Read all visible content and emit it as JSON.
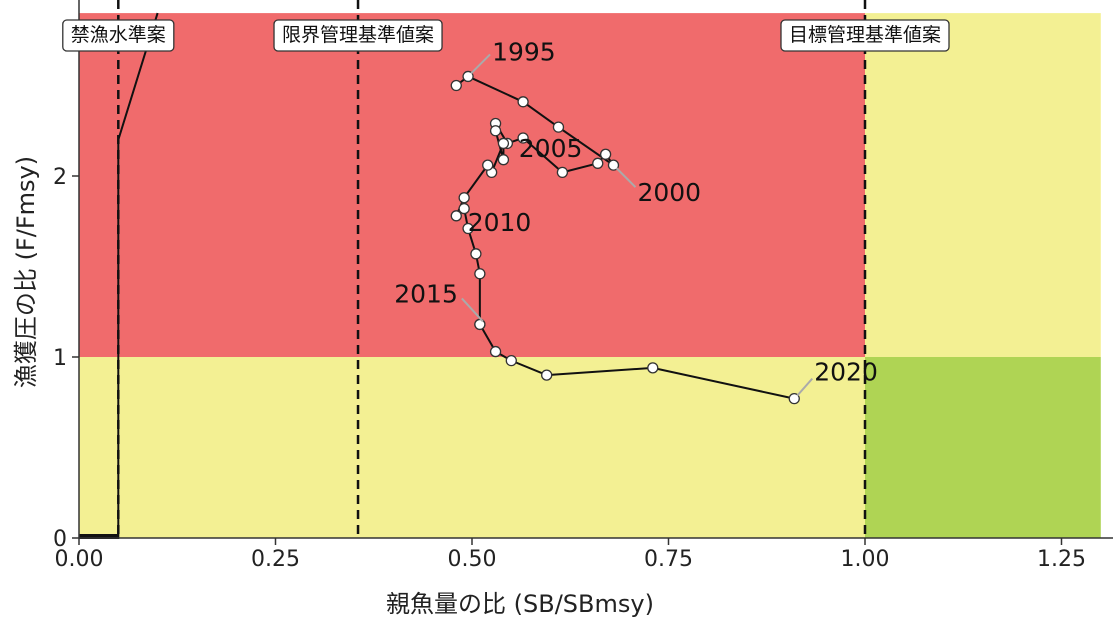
{
  "chart_data": {
    "type": "scatter",
    "title": "",
    "xlabel": "親魚量の比 (SB/SBmsy)",
    "ylabel": "漁獲圧の比 (F/Fmsy)",
    "xlim": [
      0,
      1.3
    ],
    "ylim": [
      0,
      2.9
    ],
    "x_ticks": [
      "0.00",
      "0.25",
      "0.50",
      "0.75",
      "1.00",
      "1.25"
    ],
    "y_ticks": [
      "0",
      "1",
      "2"
    ],
    "grid": false,
    "zones": [
      {
        "name": "red",
        "x": [
          0,
          1.0
        ],
        "y": [
          1.0,
          2.9
        ],
        "color": "#f06b6c"
      },
      {
        "name": "yellow-low",
        "x": [
          0,
          1.0
        ],
        "y": [
          0,
          1.0
        ],
        "color": "#f3f093"
      },
      {
        "name": "yellow-high",
        "x": [
          1.0,
          1.3
        ],
        "y": [
          1.0,
          2.9
        ],
        "color": "#f3f093"
      },
      {
        "name": "green",
        "x": [
          1.0,
          1.3
        ],
        "y": [
          0,
          1.0
        ],
        "color": "#afd454"
      }
    ],
    "reference_lines": [
      {
        "label": "禁漁水準案",
        "x": 0.05
      },
      {
        "label": "限界管理基準値案",
        "x": 0.355
      },
      {
        "label": "目標管理基準値案",
        "x": 1.0
      }
    ],
    "hcr_line": {
      "x": [
        0,
        0.05,
        0.05,
        0.1
      ],
      "y": [
        0,
        0,
        2.2,
        2.9
      ]
    },
    "series": [
      {
        "x": [
          0.48,
          0.495,
          0.565,
          0.61,
          0.68,
          0.67,
          0.66,
          0.615,
          0.565,
          0.545,
          0.53,
          0.53,
          0.54,
          0.54,
          0.525,
          0.52,
          0.49,
          0.48,
          0.49,
          0.495,
          0.505,
          0.51,
          0.51,
          0.51,
          0.53,
          0.55,
          0.595,
          0.73,
          0.91
        ],
        "y": [
          2.5,
          2.55,
          2.41,
          2.27,
          2.06,
          2.12,
          2.07,
          2.02,
          2.21,
          2.18,
          2.29,
          2.25,
          2.09,
          2.18,
          2.02,
          2.06,
          1.88,
          1.78,
          1.82,
          1.71,
          1.57,
          1.46,
          1.18,
          1.18,
          1.03,
          0.98,
          0.9,
          0.94,
          0.77
        ]
      }
    ],
    "annotations": [
      {
        "text": "1995",
        "x": 0.495,
        "y": 2.55
      },
      {
        "text": "2000",
        "x": 0.68,
        "y": 2.06
      },
      {
        "text": "2005",
        "x": 0.6,
        "y": 2.15
      },
      {
        "text": "2010",
        "x": 0.535,
        "y": 1.74
      },
      {
        "text": "2015",
        "x": 0.51,
        "y": 1.18
      },
      {
        "text": "2020",
        "x": 0.91,
        "y": 0.77
      }
    ],
    "colors": {
      "line": "#111111",
      "point_fill": "#ffffff",
      "leader": "#aaaaaa"
    }
  }
}
